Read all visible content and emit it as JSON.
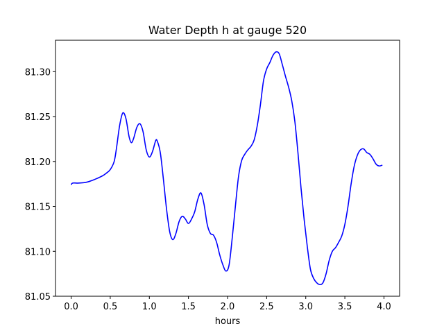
{
  "chart_data": {
    "type": "line",
    "title": "Water Depth h at gauge 520",
    "xlabel": "hours",
    "ylabel": "",
    "xlim": [
      -0.2,
      4.2
    ],
    "ylim": [
      81.05,
      81.335
    ],
    "xticks": [
      0.0,
      0.5,
      1.0,
      1.5,
      2.0,
      2.5,
      3.0,
      3.5,
      4.0
    ],
    "xtick_labels": [
      "0.0",
      "0.5",
      "1.0",
      "1.5",
      "2.0",
      "2.5",
      "3.0",
      "3.5",
      "4.0"
    ],
    "yticks": [
      81.05,
      81.1,
      81.15,
      81.2,
      81.25,
      81.3
    ],
    "ytick_labels": [
      "81.05",
      "81.10",
      "81.15",
      "81.20",
      "81.25",
      "81.30"
    ],
    "grid": false,
    "line_color": "#0000ff",
    "series": [
      {
        "x": [
          0.0,
          0.02,
          0.1,
          0.2,
          0.3,
          0.4,
          0.45,
          0.5,
          0.55,
          0.58,
          0.62,
          0.66,
          0.7,
          0.74,
          0.77,
          0.8,
          0.84,
          0.88,
          0.92,
          0.96,
          1.0,
          1.04,
          1.08,
          1.1,
          1.14,
          1.18,
          1.22,
          1.26,
          1.3,
          1.34,
          1.38,
          1.42,
          1.46,
          1.5,
          1.54,
          1.58,
          1.62,
          1.66,
          1.7,
          1.74,
          1.78,
          1.82,
          1.86,
          1.9,
          1.94,
          1.98,
          2.02,
          2.06,
          2.1,
          2.14,
          2.18,
          2.22,
          2.26,
          2.3,
          2.34,
          2.38,
          2.42,
          2.46,
          2.5,
          2.54,
          2.58,
          2.62,
          2.66,
          2.7,
          2.74,
          2.78,
          2.82,
          2.86,
          2.9,
          2.94,
          2.98,
          3.02,
          3.06,
          3.1,
          3.14,
          3.18,
          3.22,
          3.26,
          3.3,
          3.34,
          3.38,
          3.42,
          3.46,
          3.5,
          3.54,
          3.58,
          3.62,
          3.66,
          3.7,
          3.74,
          3.78,
          3.82,
          3.86,
          3.9,
          3.94,
          3.98
        ],
        "values": [
          81.174,
          81.176,
          81.176,
          81.177,
          81.18,
          81.184,
          81.187,
          81.191,
          81.2,
          81.215,
          81.24,
          81.254,
          81.248,
          81.228,
          81.221,
          81.226,
          81.238,
          81.242,
          81.233,
          81.213,
          81.205,
          81.211,
          81.223,
          81.223,
          81.21,
          81.18,
          81.147,
          81.122,
          81.113,
          81.12,
          81.133,
          81.139,
          81.136,
          81.131,
          81.136,
          81.144,
          81.158,
          81.165,
          81.152,
          81.13,
          81.12,
          81.118,
          81.11,
          81.096,
          81.085,
          81.078,
          81.085,
          81.115,
          81.15,
          81.183,
          81.201,
          81.208,
          81.213,
          81.217,
          81.224,
          81.24,
          81.263,
          81.29,
          81.303,
          81.31,
          81.318,
          81.322,
          81.32,
          81.308,
          81.295,
          81.283,
          81.268,
          81.245,
          81.21,
          81.17,
          81.135,
          81.105,
          81.08,
          81.07,
          81.065,
          81.063,
          81.065,
          81.075,
          81.09,
          81.1,
          81.104,
          81.11,
          81.117,
          81.13,
          81.15,
          81.175,
          81.195,
          81.207,
          81.213,
          81.214,
          81.21,
          81.208,
          81.203,
          81.197,
          81.195,
          81.196
        ]
      }
    ]
  }
}
